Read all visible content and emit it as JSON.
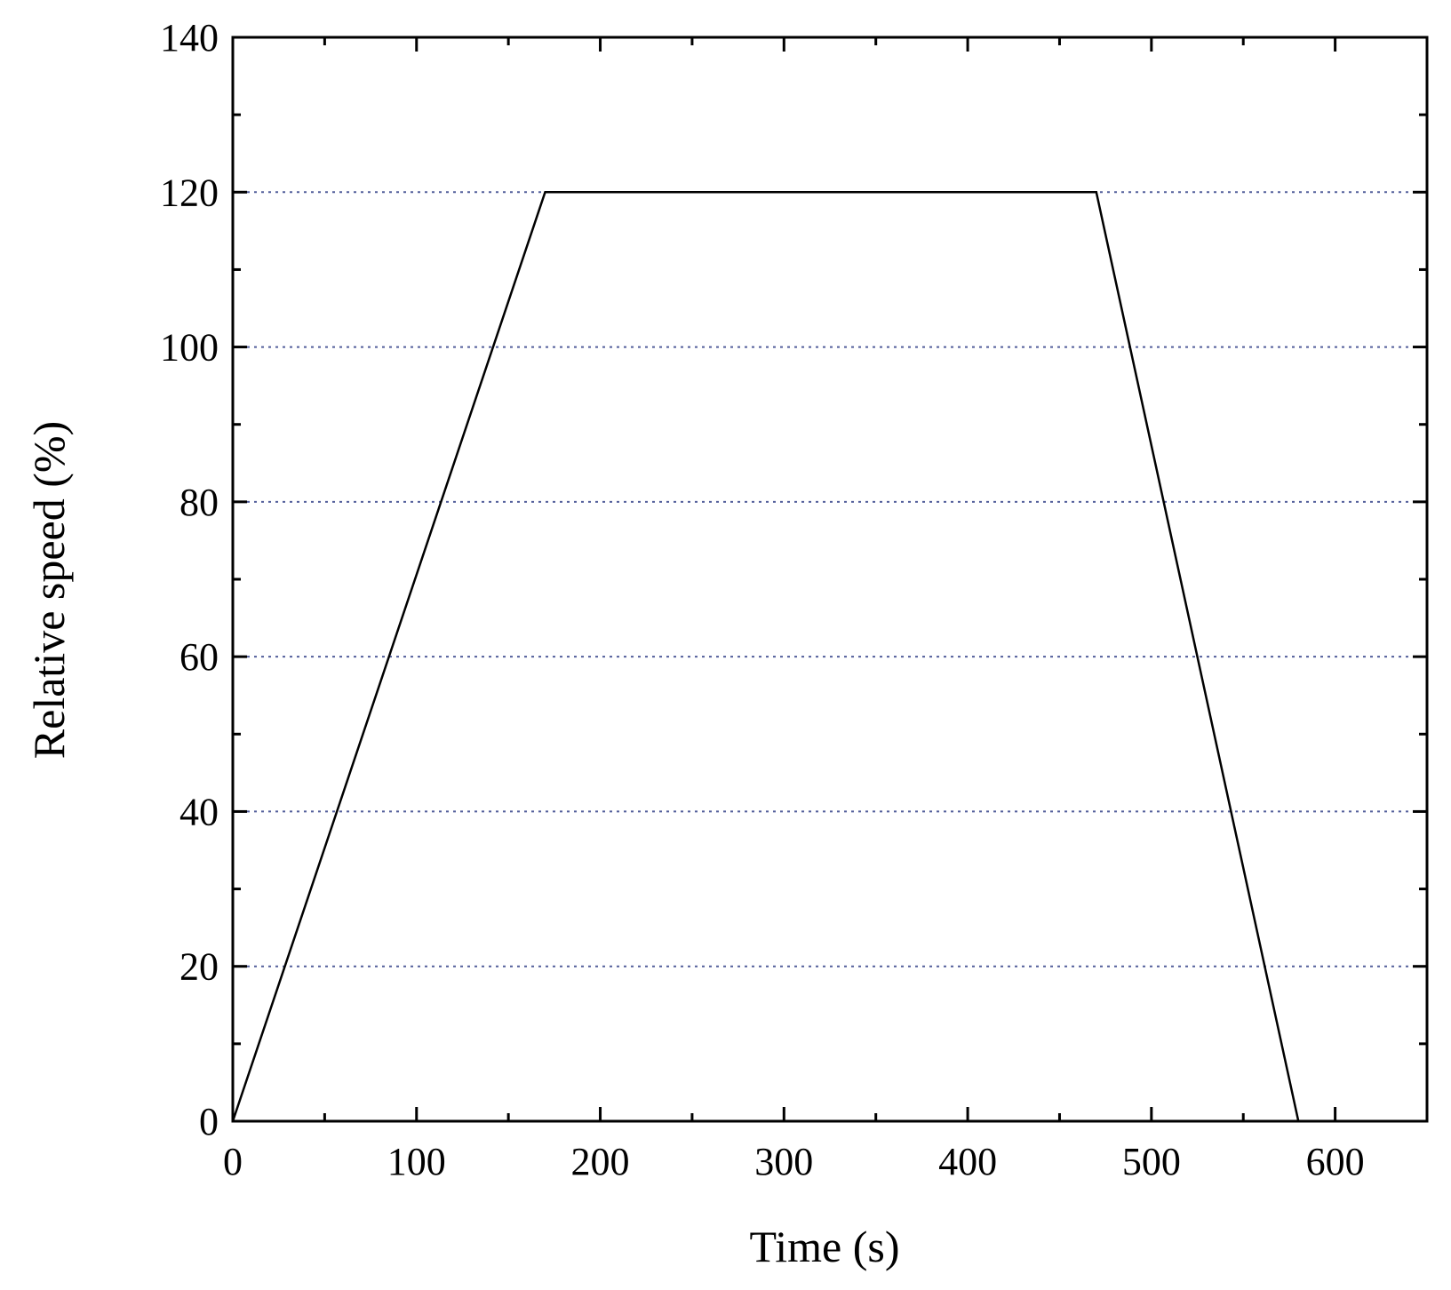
{
  "chart_data": {
    "type": "line",
    "title": "",
    "xlabel": "Time (s)",
    "ylabel": "Relative speed (%)",
    "xlim": [
      0,
      650
    ],
    "ylim": [
      0,
      140
    ],
    "x_ticks": [
      0,
      100,
      200,
      300,
      400,
      500,
      600
    ],
    "y_ticks": [
      0,
      20,
      40,
      60,
      80,
      100,
      120,
      140
    ],
    "x_tick_labels": [
      "0",
      "100",
      "200",
      "300",
      "400",
      "500",
      "600"
    ],
    "y_tick_labels": [
      "0",
      "20",
      "40",
      "60",
      "80",
      "100",
      "120",
      "140"
    ],
    "x_minor_step": 50,
    "y_minor_step": 10,
    "grid": "horizontal dotted lines at y = 20, 40, 60, 80, 100, 120",
    "grid_y_values": [
      20,
      40,
      60,
      80,
      100,
      120
    ],
    "legend": "none",
    "colors": {
      "line": "#000000",
      "axes": "#000000",
      "grid": "#1a2a7a"
    },
    "series": [
      {
        "x": [
          0,
          170,
          470,
          580
        ],
        "y": [
          0,
          120,
          120,
          0
        ]
      }
    ]
  }
}
